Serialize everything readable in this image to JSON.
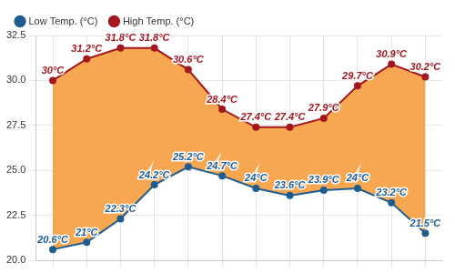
{
  "chart_data": {
    "type": "line",
    "categories": [
      null,
      null,
      null,
      null,
      null,
      null,
      null,
      null,
      null,
      null,
      null,
      null
    ],
    "series": [
      {
        "name": "Low Temp. (°C)",
        "color": "#1f5c8f",
        "marker": "circle",
        "line_style": "solid",
        "values": [
          20.6,
          21,
          22.3,
          24.2,
          25.2,
          24.7,
          24,
          23.6,
          23.9,
          24,
          23.2,
          21.5
        ],
        "value_labels": [
          "20.6°C",
          "21°C",
          "22.3°C",
          "24.2°C",
          "25.2°C",
          "24.7°C",
          "24°C",
          "23.6°C",
          "23.9°C",
          "24°C",
          "23.2°C",
          "21.5°C"
        ]
      },
      {
        "name": "High Temp. (°C)",
        "color": "#a3171e",
        "marker": "circle",
        "line_style": "solid",
        "values": [
          30,
          31.2,
          31.8,
          31.8,
          30.6,
          28.4,
          27.4,
          27.4,
          27.9,
          29.7,
          30.9,
          30.2
        ],
        "value_labels": [
          "30°C",
          "31.2°C",
          "31.8°C",
          "31.8°C",
          "30.6°C",
          "28.4°C",
          "27.4°C",
          "27.4°C",
          "27.9°C",
          "29.7°C",
          "30.9°C",
          "30.2°C"
        ]
      }
    ],
    "ylim": [
      20,
      32.5
    ],
    "yticks": [
      {
        "value": 20,
        "label": "20.0"
      },
      22.5,
      {
        "value": 25,
        "label": "25.0"
      },
      27.5,
      {
        "value": 30,
        "label": "30.0"
      },
      32.5
    ],
    "grid": true,
    "legend": "top-left",
    "data_labels": true,
    "tick_labels": "y"
  }
}
